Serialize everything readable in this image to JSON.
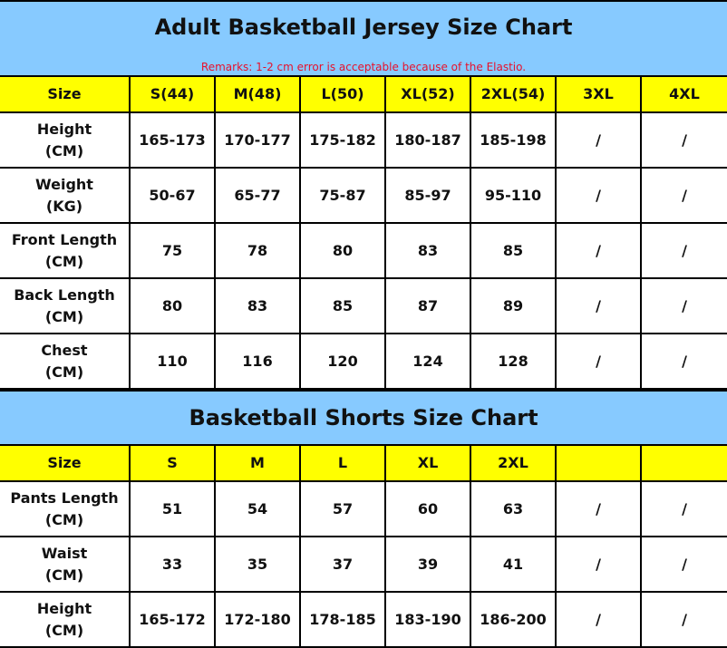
{
  "jersey": {
    "title": "Adult Basketball Jersey Size Chart",
    "remark": "Remarks: 1-2 cm error is acceptable because of the Elastio.",
    "headers": [
      "Size",
      "S(44)",
      "M(48)",
      "L(50)",
      "XL(52)",
      "2XL(54)",
      "3XL",
      "4XL"
    ],
    "rows": [
      {
        "label": "Height",
        "unit": "(CM)",
        "values": [
          "165-173",
          "170-177",
          "175-182",
          "180-187",
          "185-198",
          "/",
          "/"
        ]
      },
      {
        "label": "Weight",
        "unit": "(KG)",
        "values": [
          "50-67",
          "65-77",
          "75-87",
          "85-97",
          "95-110",
          "/",
          "/"
        ]
      },
      {
        "label": "Front Length",
        "unit": "(CM)",
        "values": [
          "75",
          "78",
          "80",
          "83",
          "85",
          "/",
          "/"
        ]
      },
      {
        "label": "Back Length",
        "unit": "(CM)",
        "values": [
          "80",
          "83",
          "85",
          "87",
          "89",
          "/",
          "/"
        ]
      },
      {
        "label": "Chest",
        "unit": "(CM)",
        "values": [
          "110",
          "116",
          "120",
          "124",
          "128",
          "/",
          "/"
        ]
      }
    ]
  },
  "shorts": {
    "title": "Basketball Shorts Size Chart",
    "headers": [
      "Size",
      "S",
      "M",
      "L",
      "XL",
      "2XL",
      "",
      ""
    ],
    "rows": [
      {
        "label": "Pants Length",
        "unit": "(CM)",
        "values": [
          "51",
          "54",
          "57",
          "60",
          "63",
          "/",
          "/"
        ]
      },
      {
        "label": "Waist",
        "unit": "(CM)",
        "values": [
          "33",
          "35",
          "37",
          "39",
          "41",
          "/",
          "/"
        ]
      },
      {
        "label": "Height",
        "unit": "(CM)",
        "values": [
          "165-172",
          "172-180",
          "178-185",
          "183-190",
          "186-200",
          "/",
          "/"
        ]
      }
    ]
  },
  "colors": {
    "title_bg": "#87caff",
    "header_bg": "#ffff00",
    "remark": "#e8102a"
  }
}
